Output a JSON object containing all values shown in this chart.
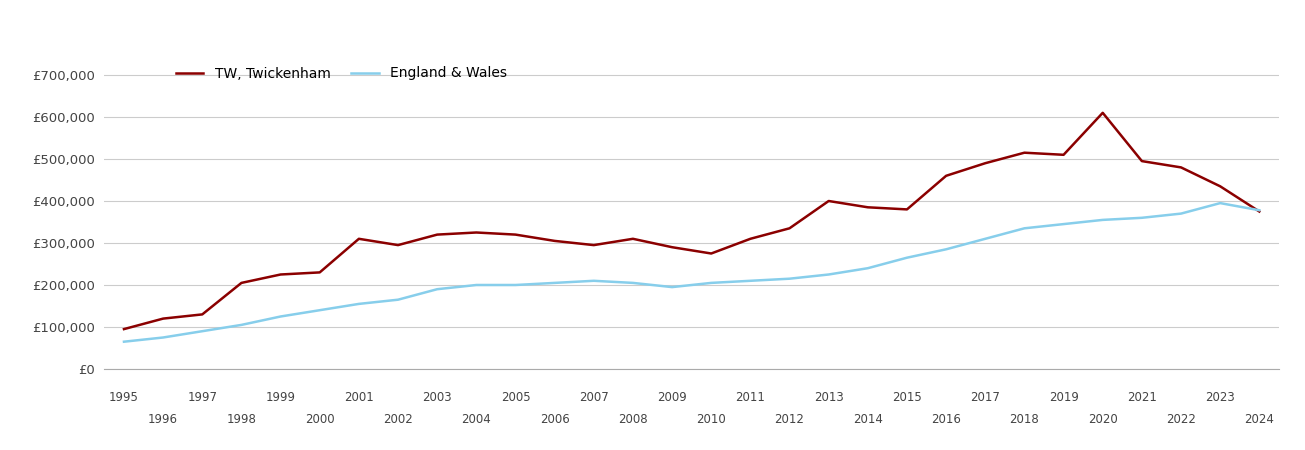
{
  "legend_twickenham": "TW, Twickenham",
  "legend_england": "England & Wales",
  "twickenham_color": "#8B0000",
  "england_color": "#87CEEB",
  "background_color": "#ffffff",
  "grid_color": "#cccccc",
  "ylim": [
    0,
    750000
  ],
  "yticks": [
    0,
    100000,
    200000,
    300000,
    400000,
    500000,
    600000,
    700000
  ],
  "years": [
    1995,
    1996,
    1997,
    1998,
    1999,
    2000,
    2001,
    2002,
    2003,
    2004,
    2005,
    2006,
    2007,
    2008,
    2009,
    2010,
    2011,
    2012,
    2013,
    2014,
    2015,
    2016,
    2017,
    2018,
    2019,
    2020,
    2021,
    2022,
    2023,
    2024
  ],
  "twickenham": [
    95000,
    120000,
    130000,
    205000,
    225000,
    230000,
    310000,
    295000,
    320000,
    325000,
    320000,
    305000,
    295000,
    310000,
    290000,
    275000,
    310000,
    335000,
    400000,
    385000,
    380000,
    460000,
    490000,
    515000,
    510000,
    610000,
    495000,
    480000,
    435000,
    375000
  ],
  "england": [
    65000,
    75000,
    90000,
    105000,
    125000,
    140000,
    155000,
    165000,
    190000,
    200000,
    200000,
    205000,
    210000,
    205000,
    195000,
    205000,
    210000,
    215000,
    225000,
    240000,
    265000,
    285000,
    310000,
    335000,
    345000,
    355000,
    360000,
    370000,
    395000,
    378000
  ],
  "xlim": [
    1994.5,
    2024.5
  ],
  "odd_years": [
    1995,
    1997,
    1999,
    2001,
    2003,
    2005,
    2007,
    2009,
    2011,
    2013,
    2015,
    2017,
    2019,
    2021,
    2023
  ],
  "even_years": [
    1996,
    1998,
    2000,
    2002,
    2004,
    2006,
    2008,
    2010,
    2012,
    2014,
    2016,
    2018,
    2020,
    2022,
    2024
  ]
}
